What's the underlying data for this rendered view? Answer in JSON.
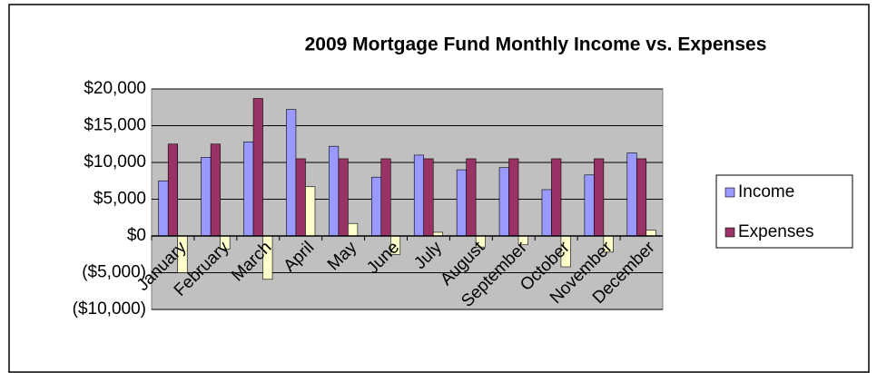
{
  "chart_data": {
    "type": "bar",
    "title": "2009 Mortgage Fund Monthly Income vs. Expenses",
    "categories": [
      "January",
      "February",
      "March",
      "April",
      "May",
      "June",
      "July",
      "August",
      "September",
      "October",
      "November",
      "December"
    ],
    "series": [
      {
        "name": "Income",
        "color": "#9999FF",
        "values": [
          7500,
          10700,
          12800,
          17200,
          12200,
          8000,
          11000,
          9000,
          9300,
          6300,
          8300,
          11300
        ]
      },
      {
        "name": "Expenses",
        "color": "#993366",
        "values": [
          12500,
          12500,
          18700,
          10500,
          10500,
          10500,
          10500,
          10500,
          10500,
          10500,
          10500,
          10500
        ]
      },
      {
        "color": "#FFFFCC",
        "values": [
          -5000,
          -1800,
          -5900,
          6700,
          1700,
          -2500,
          500,
          -1500,
          -1200,
          -4200,
          -2200,
          800
        ]
      }
    ],
    "ylim": [
      -10000,
      20000
    ],
    "yticks": [
      {
        "value": -10000,
        "label": "($10,000)"
      },
      {
        "value": -5000,
        "label": "($5,000)"
      },
      {
        "value": 0,
        "label": "$0"
      },
      {
        "value": 5000,
        "label": "$5,000"
      },
      {
        "value": 10000,
        "label": "$10,000"
      },
      {
        "value": 15000,
        "label": "$15,000"
      },
      {
        "value": 20000,
        "label": "$20,000"
      }
    ],
    "grid": true,
    "legend": "right"
  }
}
